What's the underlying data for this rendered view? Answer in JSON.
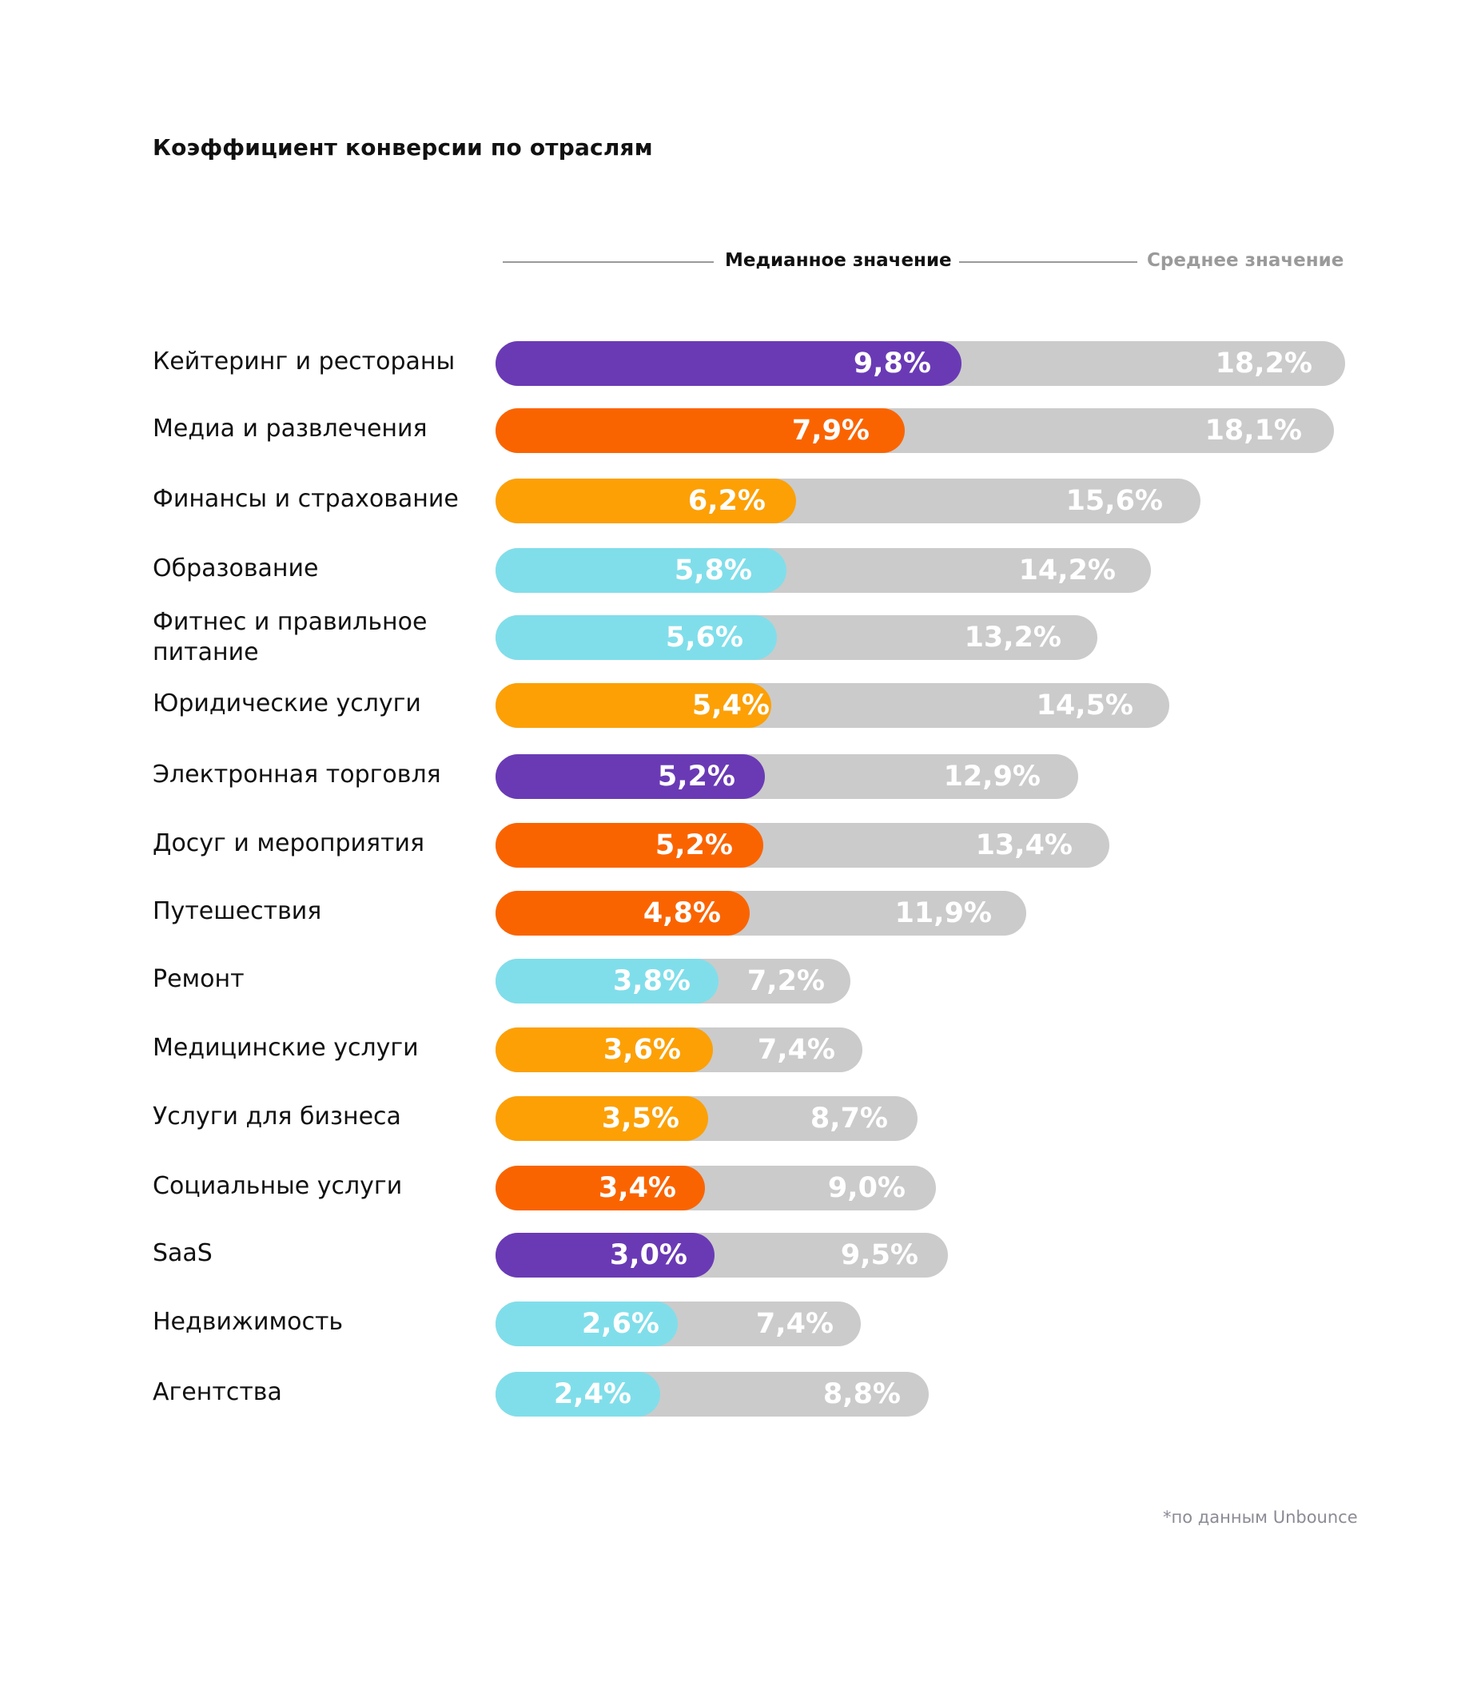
{
  "chart_data": {
    "type": "bar",
    "orientation": "horizontal",
    "title": "Коэффициент конверсии по отраслям",
    "legend": [
      {
        "name": "Медианное значение",
        "color": "#111111"
      },
      {
        "name": "Среднее значение",
        "color": "#9a9a9a"
      }
    ],
    "legend_placement": "top",
    "categories": [
      "Кейтеринг и рестораны",
      "Медиа и развлечения",
      "Финансы и страхование",
      "Образование",
      "Фитнес и правильное питание",
      "Юридические услуги",
      "Электронная торговля",
      "Досуг и мероприятия",
      "Путешествия",
      "Ремонт",
      "Медицинские услуги",
      "Услуги для бизнеса",
      "Социальные услуги",
      "SaaS",
      "Недвижимость",
      "Агентства"
    ],
    "series": [
      {
        "name": "Медианное значение",
        "values": [
          9.8,
          7.9,
          6.2,
          5.8,
          5.6,
          5.4,
          5.2,
          5.2,
          4.8,
          3.8,
          3.6,
          3.5,
          3.4,
          3.0,
          2.6,
          2.4
        ],
        "labels": [
          "9,8%",
          "7,9%",
          "6,2%",
          "5,8%",
          "5,6%",
          "5,4%",
          "5,2%",
          "5,2%",
          "4,8%",
          "3,8%",
          "3,6%",
          "3,5%",
          "3,4%",
          "3,0%",
          "2,6%",
          "2,4%"
        ]
      },
      {
        "name": "Среднее значение",
        "values": [
          18.2,
          18.1,
          15.6,
          14.2,
          13.2,
          14.5,
          12.9,
          13.4,
          11.9,
          7.2,
          7.4,
          8.7,
          9.0,
          9.5,
          7.4,
          8.8
        ],
        "labels": [
          "18,2%",
          "18,1%",
          "15,6%",
          "14,2%",
          "13,2%",
          "14,5%",
          "12,9%",
          "13,4%",
          "11,9%",
          "7,2%",
          "7,4%",
          "8,7%",
          "9,0%",
          "9,5%",
          "7,4%",
          "8,8%"
        ]
      }
    ],
    "bar_colors": [
      "#6a3ab5",
      "#fa6400",
      "#fca006",
      "#80deea",
      "#80deea",
      "#fca006",
      "#6a3ab5",
      "#fa6400",
      "#fa6400",
      "#80deea",
      "#fca006",
      "#fca006",
      "#fa6400",
      "#6a3ab5",
      "#80deea",
      "#80deea"
    ],
    "track_color": "#cbcbcb",
    "xlabel": "",
    "ylabel": "",
    "unit": "%",
    "grid": false
  },
  "footnote": "*по данным Unbounce"
}
